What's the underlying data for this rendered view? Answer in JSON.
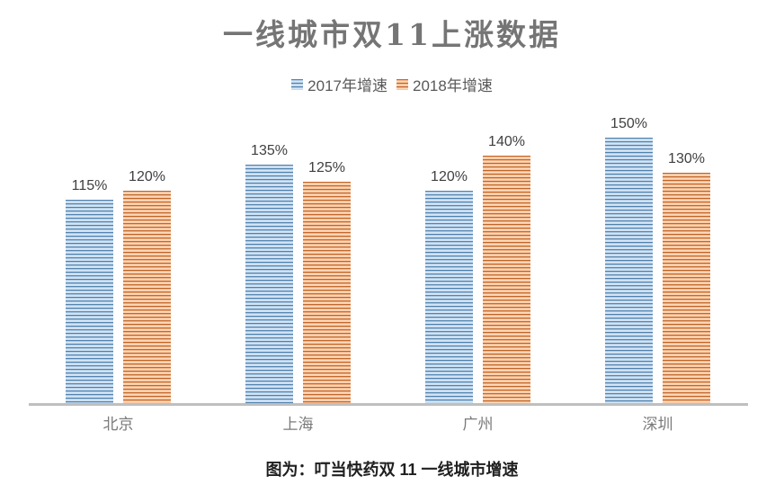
{
  "chart_data": {
    "type": "bar",
    "title": "一线城市双11上涨数据",
    "categories": [
      "北京",
      "上海",
      "广州",
      "深圳"
    ],
    "series": [
      {
        "name": "2017年增速",
        "color": "#5B9BD5",
        "pattern": "horizontal-stripes",
        "values": [
          115,
          135,
          120,
          150
        ]
      },
      {
        "name": "2018年增速",
        "color": "#ED7D31",
        "pattern": "horizontal-stripes",
        "values": [
          120,
          125,
          140,
          130
        ]
      }
    ],
    "unit": "%",
    "data_labels": true,
    "legend_position": "top",
    "ylim": [
      0,
      150
    ],
    "grid": false,
    "axis_line_color": "#BFBFBF"
  },
  "caption": "图为：叮当快药双 11 一线城市增速"
}
